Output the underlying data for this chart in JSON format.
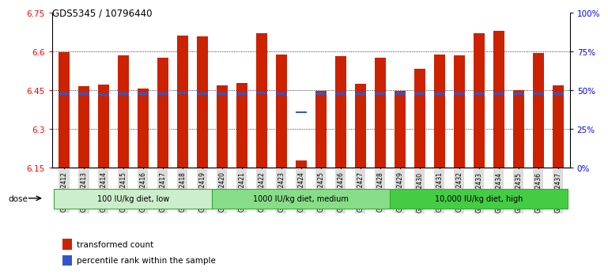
{
  "title": "GDS5345 / 10796440",
  "samples": [
    "GSM1502412",
    "GSM1502413",
    "GSM1502414",
    "GSM1502415",
    "GSM1502416",
    "GSM1502417",
    "GSM1502418",
    "GSM1502419",
    "GSM1502420",
    "GSM1502421",
    "GSM1502422",
    "GSM1502423",
    "GSM1502424",
    "GSM1502425",
    "GSM1502426",
    "GSM1502427",
    "GSM1502428",
    "GSM1502429",
    "GSM1502430",
    "GSM1502431",
    "GSM1502432",
    "GSM1502433",
    "GSM1502434",
    "GSM1502435",
    "GSM1502436",
    "GSM1502437"
  ],
  "bar_tops": [
    6.597,
    6.466,
    6.472,
    6.585,
    6.457,
    6.575,
    6.662,
    6.658,
    6.47,
    6.478,
    6.67,
    6.59,
    6.178,
    6.447,
    6.583,
    6.475,
    6.575,
    6.447,
    6.535,
    6.588,
    6.585,
    6.67,
    6.68,
    6.45,
    6.595,
    6.47
  ],
  "blue_markers": [
    6.437,
    6.437,
    6.435,
    6.437,
    6.437,
    6.437,
    6.44,
    6.437,
    6.438,
    6.437,
    6.44,
    6.437,
    6.365,
    6.437,
    6.437,
    6.437,
    6.437,
    6.437,
    6.437,
    6.437,
    6.437,
    6.437,
    6.437,
    6.437,
    6.437,
    6.437
  ],
  "y_min": 6.15,
  "y_max": 6.75,
  "y_ticks_left": [
    6.15,
    6.3,
    6.45,
    6.6,
    6.75
  ],
  "y_ticks_right_vals": [
    0,
    25,
    50,
    75,
    100
  ],
  "bar_color": "#cc2200",
  "blue_color": "#3355cc",
  "groups": [
    {
      "label": "100 IU/kg diet, low",
      "start": 0,
      "end": 8,
      "color": "#cceecc"
    },
    {
      "label": "1000 IU/kg diet, medium",
      "start": 8,
      "end": 17,
      "color": "#88dd88"
    },
    {
      "label": "10,000 IU/kg diet, high",
      "start": 17,
      "end": 26,
      "color": "#44cc44"
    }
  ],
  "dose_label": "dose",
  "legend_items": [
    {
      "label": "transformed count",
      "color": "#cc2200"
    },
    {
      "label": "percentile rank within the sample",
      "color": "#3355cc"
    }
  ]
}
